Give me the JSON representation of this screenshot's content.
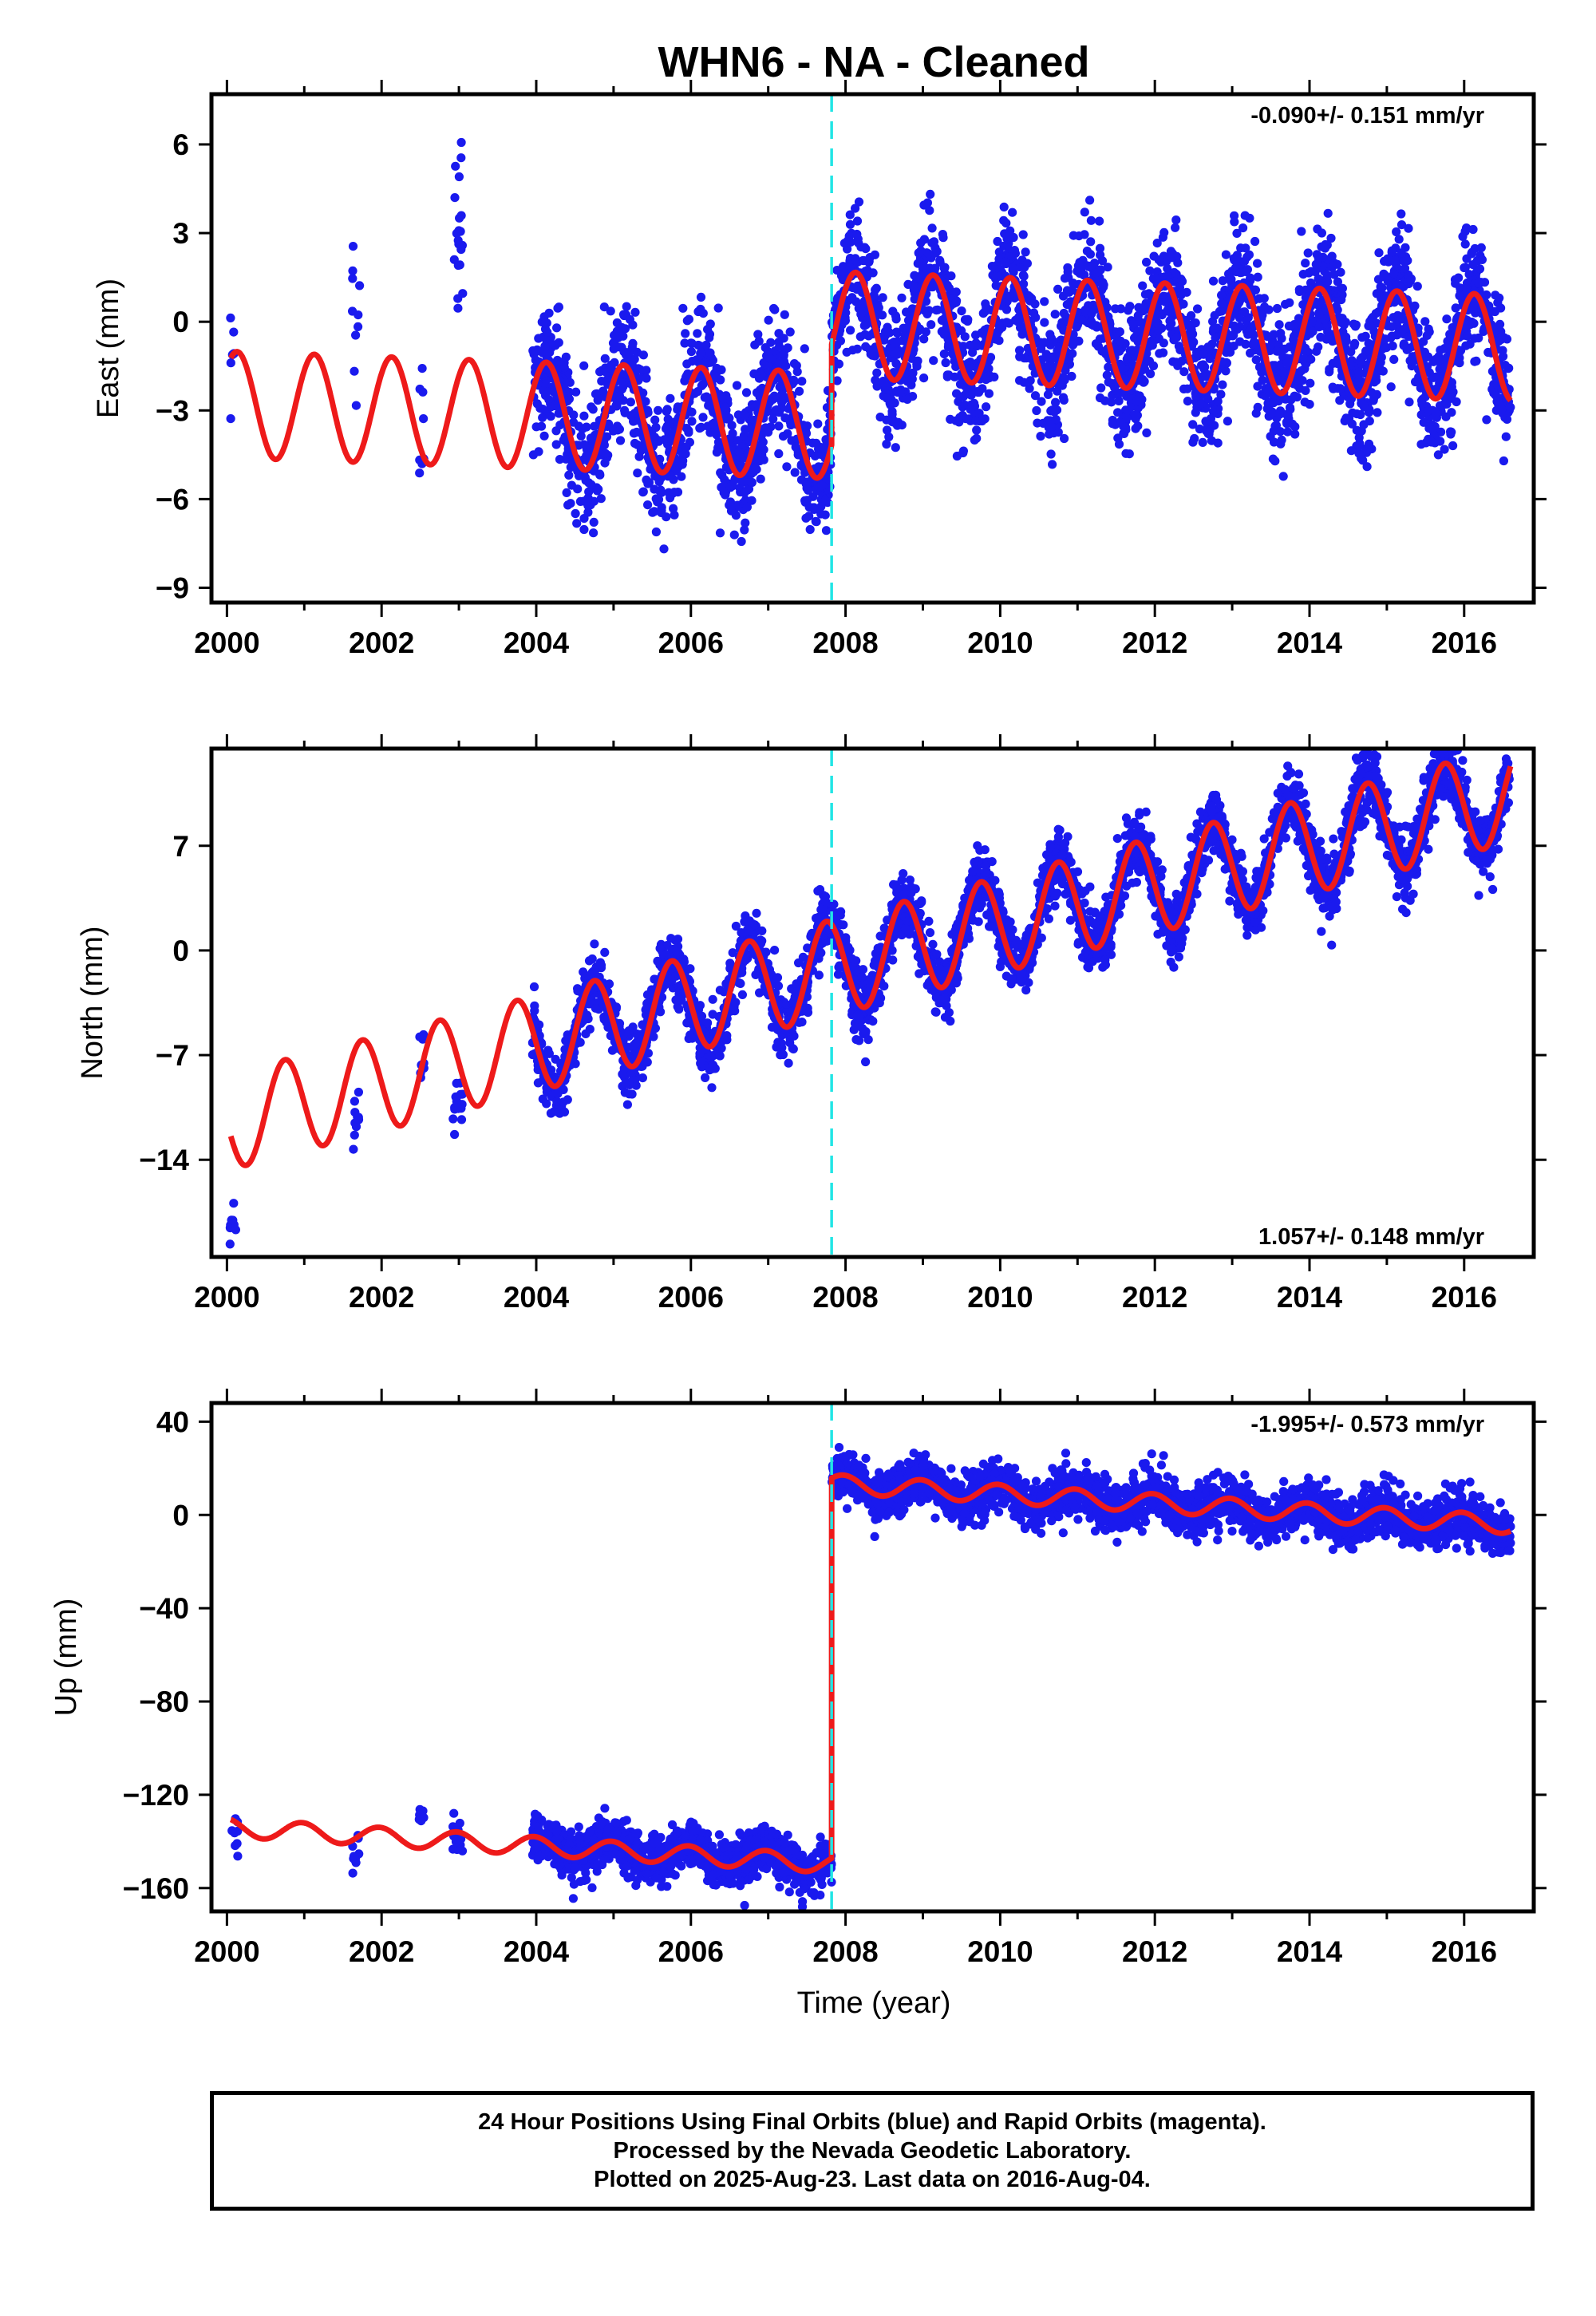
{
  "title": "WHN6  - NA - Cleaned",
  "colors": {
    "data": "#1a1aee",
    "model": "#ee1a1a",
    "offset_line": "#22e5e5",
    "frame": "#000000"
  },
  "chart_data": [
    {
      "type": "scatter",
      "component": "east",
      "ylabel": "East (mm)",
      "xlabel": "",
      "xlim": [
        1999.8,
        2016.9
      ],
      "ylim": [
        -9.5,
        7.7
      ],
      "xticks": [
        2000,
        2002,
        2004,
        2006,
        2008,
        2010,
        2012,
        2014,
        2016
      ],
      "yticks": [
        -9,
        -6,
        -3,
        0,
        3,
        6
      ],
      "ytick_labels": [
        "−9",
        "−6",
        "−3",
        "0",
        "3",
        "6"
      ],
      "rate_text": "-0.090+/- 0.151 mm/yr",
      "rate_position": "top-right",
      "offset_epoch": 2007.82,
      "model": {
        "offset_before": -2.8,
        "offset_after": 0.6,
        "rate": -0.09,
        "annual_amplitude": 1.8,
        "annual_phase_year": 0.88
      },
      "observation_groups": [
        {
          "start": 2000.04,
          "end": 2000.12,
          "count": 6,
          "mean": -0.4,
          "spread": 1.4
        },
        {
          "start": 2001.62,
          "end": 2001.72,
          "count": 10,
          "mean": 0.2,
          "spread": 1.3
        },
        {
          "start": 2002.48,
          "end": 2002.55,
          "count": 8,
          "mean": -3.6,
          "spread": 1.2
        },
        {
          "start": 2002.92,
          "end": 2003.05,
          "count": 20,
          "mean": 3.5,
          "spread": 1.5
        },
        {
          "start": 2003.95,
          "end": 2007.82,
          "count": 1100,
          "mean": -2.8,
          "spread": 1.1
        },
        {
          "start": 2007.82,
          "end": 2016.6,
          "count": 2600,
          "mean": 0.6,
          "spread": 1.1
        }
      ]
    },
    {
      "type": "scatter",
      "component": "north",
      "ylabel": "North (mm)",
      "xlabel": "",
      "xlim": [
        1999.8,
        2016.9
      ],
      "ylim": [
        -20.5,
        13.5
      ],
      "xticks": [
        2000,
        2002,
        2004,
        2006,
        2008,
        2010,
        2012,
        2014,
        2016
      ],
      "yticks": [
        -14,
        -7,
        0,
        7
      ],
      "ytick_labels": [
        "−14",
        "−7",
        "0",
        "7"
      ],
      "rate_text": "1.057+/- 0.148 mm/yr",
      "rate_position": "bottom-right",
      "offset_epoch": 2007.82,
      "model": {
        "value_at_2000": -11.5,
        "offset_after": 0.0,
        "rate": 1.057,
        "annual_amplitude": 3.2,
        "annual_phase_year": 0.5
      },
      "observation_groups": [
        {
          "start": 2000.04,
          "end": 2000.12,
          "count": 8,
          "mean": -17.5,
          "spread": 1.6
        },
        {
          "start": 2001.62,
          "end": 2001.72,
          "count": 10,
          "mean": -11.5,
          "spread": 1.3
        },
        {
          "start": 2002.48,
          "end": 2002.55,
          "count": 8,
          "mean": -7.2,
          "spread": 1.2
        },
        {
          "start": 2002.92,
          "end": 2003.05,
          "count": 14,
          "mean": -10.6,
          "spread": 1.0
        },
        {
          "start": 2003.95,
          "end": 2007.82,
          "count": 1100,
          "mean": -7.4,
          "spread": 1.1
        },
        {
          "start": 2007.82,
          "end": 2016.6,
          "count": 2600,
          "mean": 2.2,
          "spread": 1.1
        }
      ]
    },
    {
      "type": "scatter",
      "component": "up",
      "ylabel": "Up (mm)",
      "xlabel": "Time (year)",
      "xlim": [
        1999.8,
        2016.9
      ],
      "ylim": [
        -170,
        48
      ],
      "xticks": [
        2000,
        2002,
        2004,
        2006,
        2008,
        2010,
        2012,
        2014,
        2016
      ],
      "yticks": [
        -160,
        -120,
        -80,
        -40,
        0,
        40
      ],
      "ytick_labels": [
        "−160",
        "−120",
        "−80",
        "−40",
        "0",
        "40"
      ],
      "rate_text": "-1.995+/- 0.573 mm/yr",
      "rate_position": "top-right",
      "offset_epoch": 2007.82,
      "model": {
        "value_at_2000": -134,
        "offset_size": 163,
        "rate": -1.995,
        "annual_amplitude": 4.0,
        "annual_phase_year": 0.72
      },
      "observation_groups": [
        {
          "start": 2000.04,
          "end": 2000.14,
          "count": 8,
          "mean": -141,
          "spread": 5
        },
        {
          "start": 2001.62,
          "end": 2001.72,
          "count": 10,
          "mean": -145,
          "spread": 5
        },
        {
          "start": 2002.48,
          "end": 2002.55,
          "count": 8,
          "mean": -130,
          "spread": 5
        },
        {
          "start": 2002.92,
          "end": 2003.05,
          "count": 14,
          "mean": -138,
          "spread": 4
        },
        {
          "start": 2003.95,
          "end": 2007.82,
          "count": 1100,
          "mean": -143,
          "spread": 5
        },
        {
          "start": 2007.82,
          "end": 2016.6,
          "count": 2600,
          "mean": 6,
          "spread": 5
        }
      ]
    }
  ],
  "footer": {
    "line1": "24 Hour Positions Using Final Orbits (blue) and Rapid Orbits (magenta).",
    "line2": "Processed by the Nevada Geodetic Laboratory.",
    "line3": "Plotted on 2025-Aug-23. Last data on 2016-Aug-04."
  }
}
